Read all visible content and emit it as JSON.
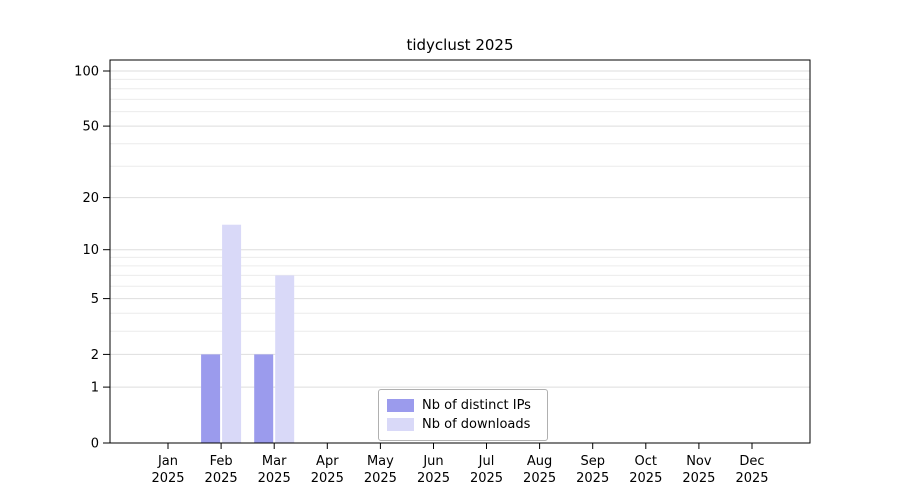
{
  "chart_data": {
    "type": "bar",
    "title": "tidyclust 2025",
    "categories": [
      "Jan",
      "Feb",
      "Mar",
      "Apr",
      "May",
      "Jun",
      "Jul",
      "Aug",
      "Sep",
      "Oct",
      "Nov",
      "Dec"
    ],
    "x_year_label": "2025",
    "series": [
      {
        "name": "Nb of distinct IPs",
        "color": "#9b9bed",
        "values": [
          0,
          2,
          2,
          0,
          0,
          0,
          0,
          0,
          0,
          0,
          0,
          0
        ]
      },
      {
        "name": "Nb of downloads",
        "color": "#d9d9f8",
        "values": [
          0,
          14,
          7,
          0,
          0,
          0,
          0,
          0,
          0,
          0,
          0,
          0
        ]
      }
    ],
    "y_ticks": [
      0,
      1,
      2,
      5,
      10,
      20,
      50,
      100
    ],
    "gridline_values": [
      1,
      2,
      3,
      4,
      5,
      6,
      7,
      8,
      9,
      10,
      20,
      30,
      40,
      50,
      60,
      70,
      80,
      90,
      100
    ],
    "y_scale": "log10(value+1)",
    "ylim": [
      0,
      100
    ],
    "xlabel": "",
    "ylabel": "",
    "grid": "on",
    "legend_position": "lower-center-inside"
  }
}
